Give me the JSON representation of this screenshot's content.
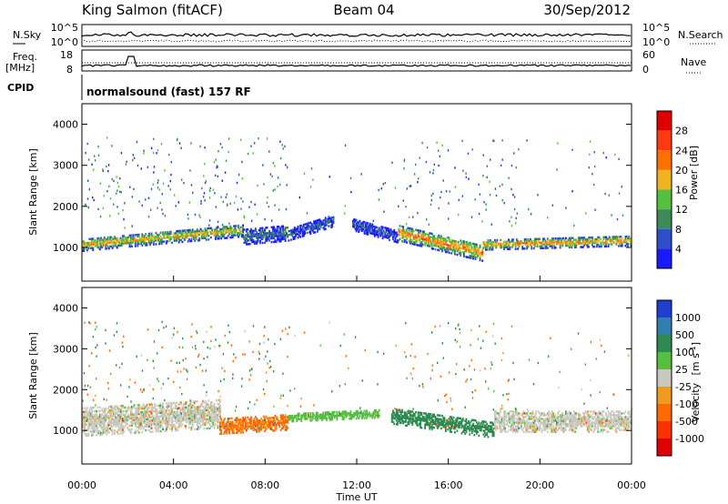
{
  "header": {
    "station": "King Salmon (fitACF)",
    "beam": "Beam 04",
    "date": "30/Sep/2012"
  },
  "params": {
    "nsky_label": "N.Sky",
    "nsky_ticks": [
      "10^5",
      "10^0"
    ],
    "nsearch_label": "N.Search",
    "nsearch_ticks": [
      "10^5",
      "10^0"
    ],
    "freq_label": "Freq.",
    "freq_unit": "[MHz]",
    "freq_ticks": [
      "18",
      "8"
    ],
    "nave_label": "Nave",
    "nave_ticks": [
      "60",
      "0"
    ],
    "cpid_label": "CPID",
    "cpid_text": "normalsound (fast) 157 RF"
  },
  "axes": {
    "ylabel": "Slant Range [km]",
    "xlabel": "Time UT",
    "yticks": [
      "1000",
      "2000",
      "3000",
      "4000"
    ],
    "xticks": [
      "00:00",
      "04:00",
      "08:00",
      "12:00",
      "16:00",
      "20:00",
      "00:00"
    ]
  },
  "power_scale": {
    "label": "Power [dB]",
    "ticks": [
      "4",
      "8",
      "12",
      "16",
      "20",
      "24",
      "28"
    ],
    "colors": [
      "#1a1aff",
      "#2e4fc7",
      "#3c8a58",
      "#55c040",
      "#f0b420",
      "#ff7000",
      "#ff3a10",
      "#e00000"
    ]
  },
  "velocity_scale": {
    "label_main": "Velocity",
    "label_unit": "[m s",
    "label_exp": "-1",
    "label_close": "]",
    "ticks": [
      "1000",
      "500",
      "100",
      "25",
      "-25",
      "-100",
      "-500",
      "-1000"
    ],
    "colors": [
      "#1f3fcc",
      "#2f7fb0",
      "#2e8a50",
      "#55c040",
      "#c8c8c0",
      "#f09a20",
      "#ff6a00",
      "#ff3000",
      "#e00000"
    ]
  },
  "chart_data": [
    {
      "type": "heatmap",
      "title": "",
      "xlabel": "Time UT",
      "ylabel": "Slant Range [km]",
      "xlim": [
        0,
        24
      ],
      "ylim": [
        180,
        4500
      ],
      "colorbar": "Power [dB]",
      "color_range": [
        0,
        30
      ],
      "bands": [
        {
          "t": [
            0,
            7
          ],
          "range_center": [
            1050,
            1400
          ],
          "range_width": 300,
          "value": 18
        },
        {
          "t": [
            7,
            9
          ],
          "range_center": [
            1250,
            1350
          ],
          "range_width": 400,
          "value": 8
        },
        {
          "t": [
            9,
            11
          ],
          "range_center": [
            1300,
            1650
          ],
          "range_width": 300,
          "value": 6
        },
        {
          "t": [
            11.8,
            13.8
          ],
          "range_center": [
            1550,
            1250
          ],
          "range_width": 300,
          "value": 6
        },
        {
          "t": [
            13.8,
            17.5
          ],
          "range_center": [
            1350,
            850
          ],
          "range_width": 400,
          "value": 22
        },
        {
          "t": [
            17.5,
            24
          ],
          "range_center": [
            1050,
            1150
          ],
          "range_width": 250,
          "value": 20
        }
      ]
    },
    {
      "type": "heatmap",
      "title": "",
      "xlabel": "Time UT",
      "ylabel": "Slant Range [km]",
      "xlim": [
        0,
        24
      ],
      "ylim": [
        180,
        4500
      ],
      "colorbar": "Velocity [m s-1]",
      "color_range": [
        -1000,
        1000
      ],
      "bands": [
        {
          "t": [
            0,
            6
          ],
          "range_center": [
            1200,
            1400
          ],
          "range_width": 700,
          "value": 0
        },
        {
          "t": [
            6,
            9
          ],
          "range_center": [
            1100,
            1200
          ],
          "range_width": 400,
          "value": -120
        },
        {
          "t": [
            9,
            13
          ],
          "range_center": [
            1300,
            1400
          ],
          "range_width": 200,
          "value": 60
        },
        {
          "t": [
            13.5,
            18
          ],
          "range_center": [
            1350,
            1000
          ],
          "range_width": 400,
          "value": 150
        },
        {
          "t": [
            18,
            24
          ],
          "range_center": [
            1200,
            1200
          ],
          "range_width": 500,
          "value": 0
        }
      ]
    }
  ]
}
